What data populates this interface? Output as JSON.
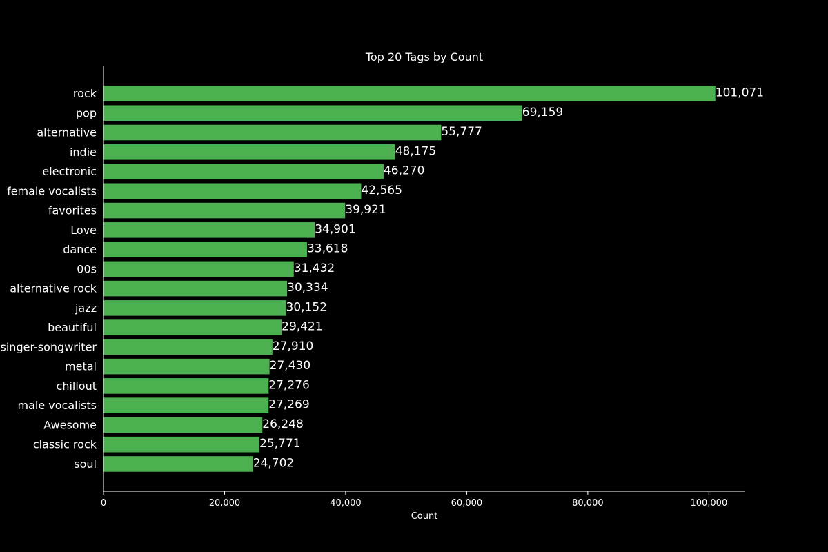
{
  "chart_data": {
    "type": "bar",
    "orientation": "horizontal",
    "title": "Top 20 Tags by Count",
    "xlabel": "Count",
    "ylabel": "",
    "xlim": [
      0,
      106000
    ],
    "x_ticks": [
      0,
      20000,
      40000,
      60000,
      80000,
      100000
    ],
    "x_tick_labels": [
      "0",
      "20,000",
      "40,000",
      "60,000",
      "80,000",
      "100,000"
    ],
    "grid": false,
    "bar_color": "#4caf50",
    "background_color": "#000000",
    "text_color": "#ffffff",
    "categories": [
      "rock",
      "pop",
      "alternative",
      "indie",
      "electronic",
      "female vocalists",
      "favorites",
      "Love",
      "dance",
      "00s",
      "alternative rock",
      "jazz",
      "beautiful",
      "singer-songwriter",
      "metal",
      "chillout",
      "male vocalists",
      "Awesome",
      "classic rock",
      "soul"
    ],
    "values": [
      101071,
      69159,
      55777,
      48175,
      46270,
      42565,
      39921,
      34901,
      33618,
      31432,
      30334,
      30152,
      29421,
      27910,
      27430,
      27276,
      27269,
      26248,
      25771,
      24702
    ],
    "value_labels": [
      "101,071",
      "69,159",
      "55,777",
      "48,175",
      "46,270",
      "42,565",
      "39,921",
      "34,901",
      "33,618",
      "31,432",
      "30,334",
      "30,152",
      "29,421",
      "27,910",
      "27,430",
      "27,276",
      "27,269",
      "26,248",
      "25,771",
      "24,702"
    ]
  }
}
